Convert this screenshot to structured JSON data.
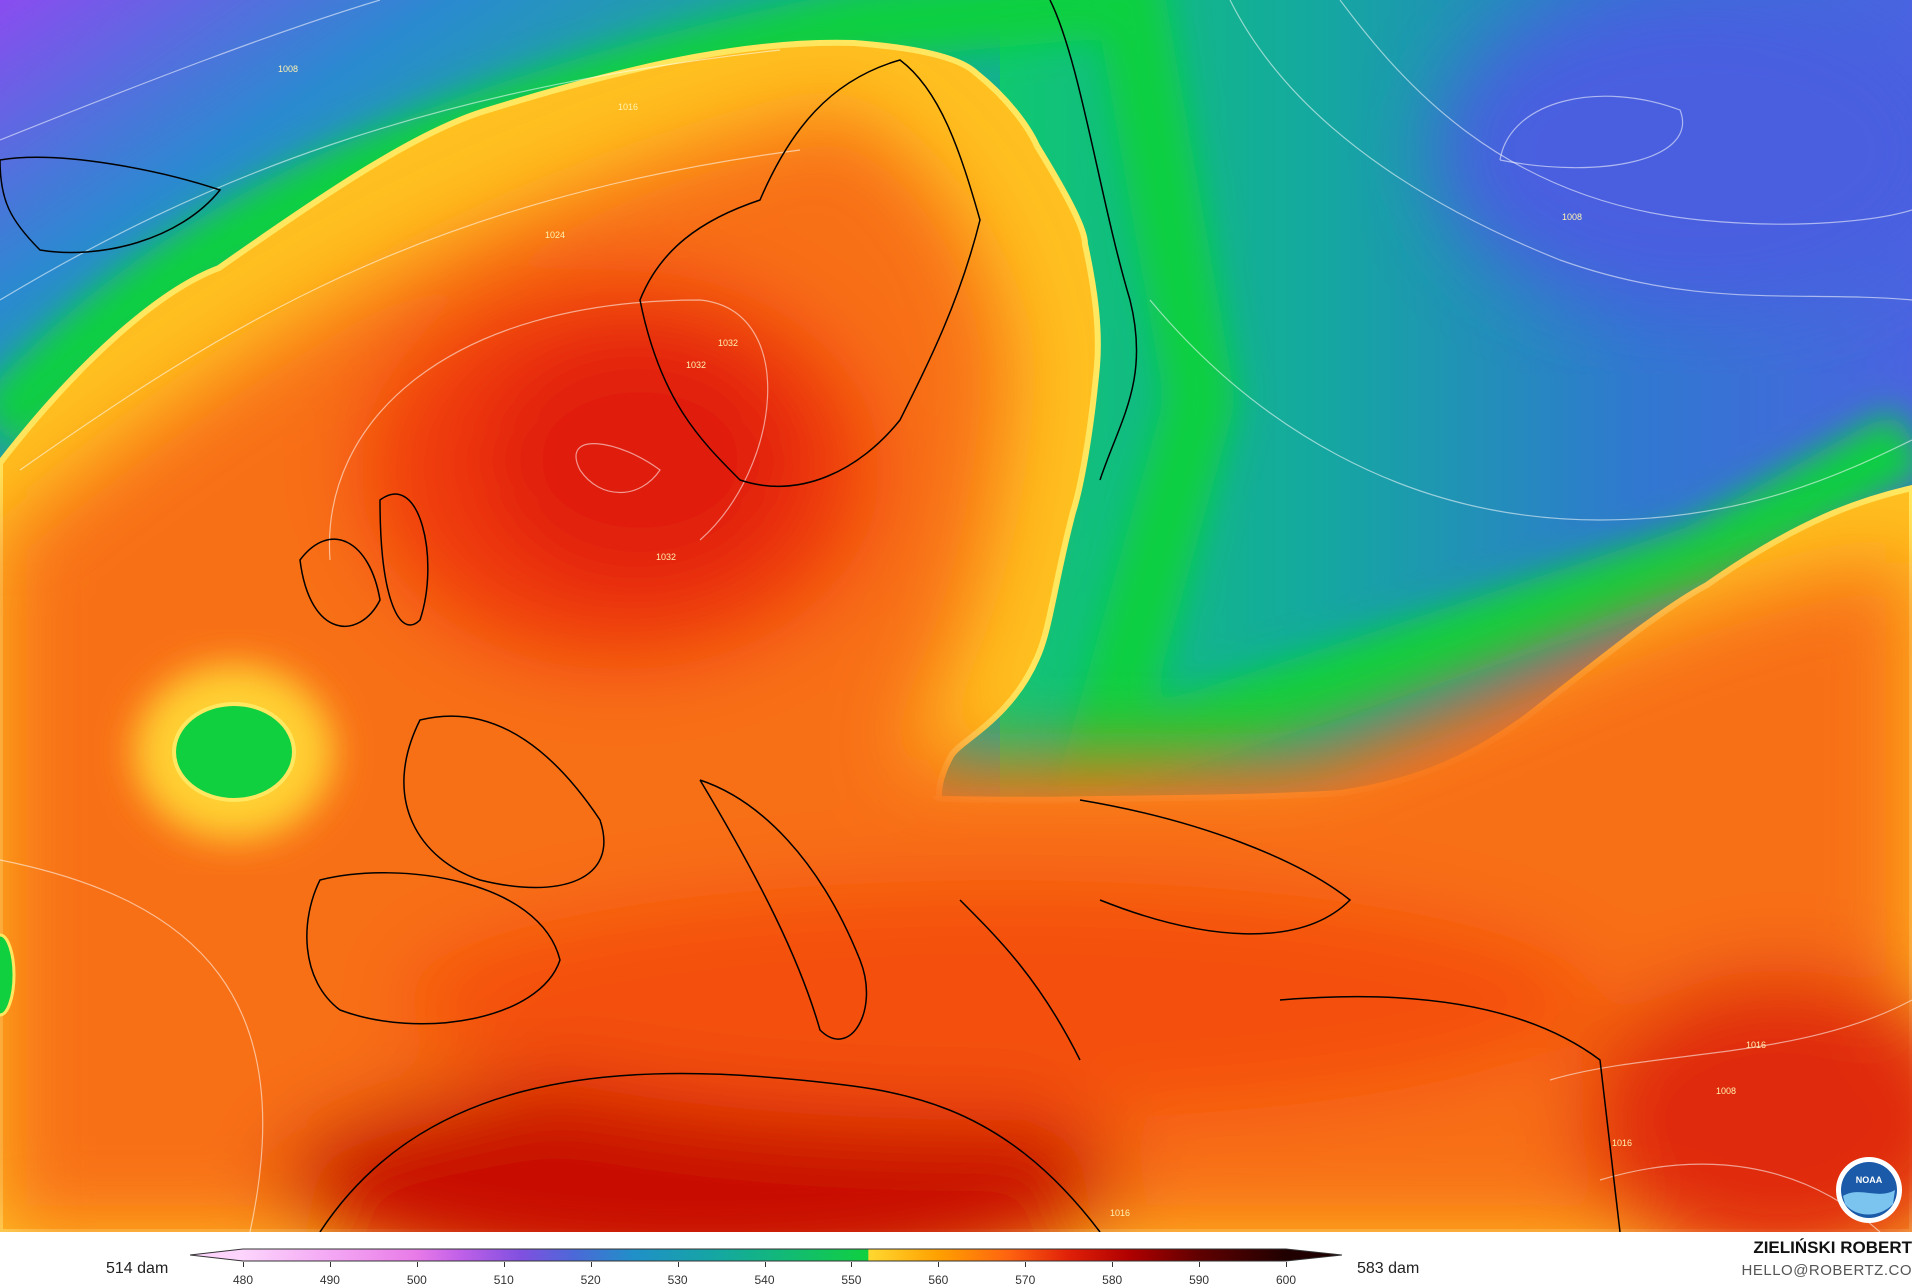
{
  "map": {
    "variable_palette": {
      "green": "#10d040",
      "teal": "#14b890",
      "blue": "#4870d8",
      "purple": "#8a4cf0",
      "yellow": "#ffd830",
      "orange": "#f86a14",
      "red": "#e01a08",
      "dark_red": "#b00000"
    },
    "isobar_labels": [
      "1008",
      "1016",
      "1024",
      "1032",
      "1032",
      "1032",
      "1008",
      "1016",
      "1008",
      "1016",
      "1016"
    ]
  },
  "legend": {
    "min_label": "514 dam",
    "max_label": "583 dam",
    "ticks": [
      "480",
      "490",
      "500",
      "510",
      "520",
      "530",
      "540",
      "550",
      "560",
      "570",
      "580",
      "590",
      "600"
    ],
    "colors": [
      "#fcd4fc",
      "#f4a8f4",
      "#e87ae8",
      "#c060e8",
      "#8050e0",
      "#4c68d8",
      "#2090c8",
      "#14a8a0",
      "#10c060",
      "#ffd830",
      "#ffa000",
      "#ff6410",
      "#e02008",
      "#b00000",
      "#600000",
      "#200000"
    ]
  },
  "credits": {
    "author": "ZIELIŃSKI ROBERT",
    "email": "HELLO@ROBERTZ.CO"
  },
  "logo": {
    "text": "NOAA"
  }
}
